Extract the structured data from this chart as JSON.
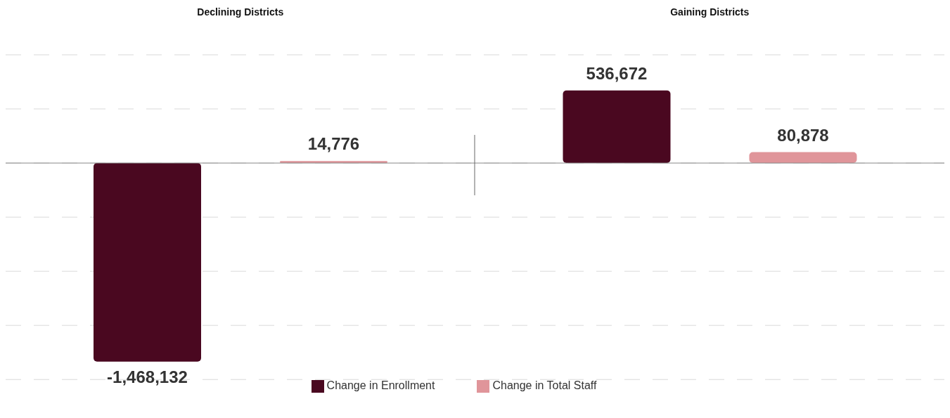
{
  "chart_data": {
    "type": "bar",
    "categories": [
      "Declining Districts",
      "Gaining Districts"
    ],
    "series": [
      {
        "name": "Change in Enrollment",
        "color": "#4a0820",
        "values": [
          -1468132,
          536672
        ],
        "value_labels": [
          "-1,468,132",
          "536,672"
        ]
      },
      {
        "name": "Change in Total Staff",
        "color": "#e0959a",
        "values": [
          14776,
          80878
        ],
        "value_labels": [
          "14,776",
          "80,878"
        ]
      }
    ],
    "grid": "y",
    "tick_labels": "x",
    "legend": "bottom"
  }
}
